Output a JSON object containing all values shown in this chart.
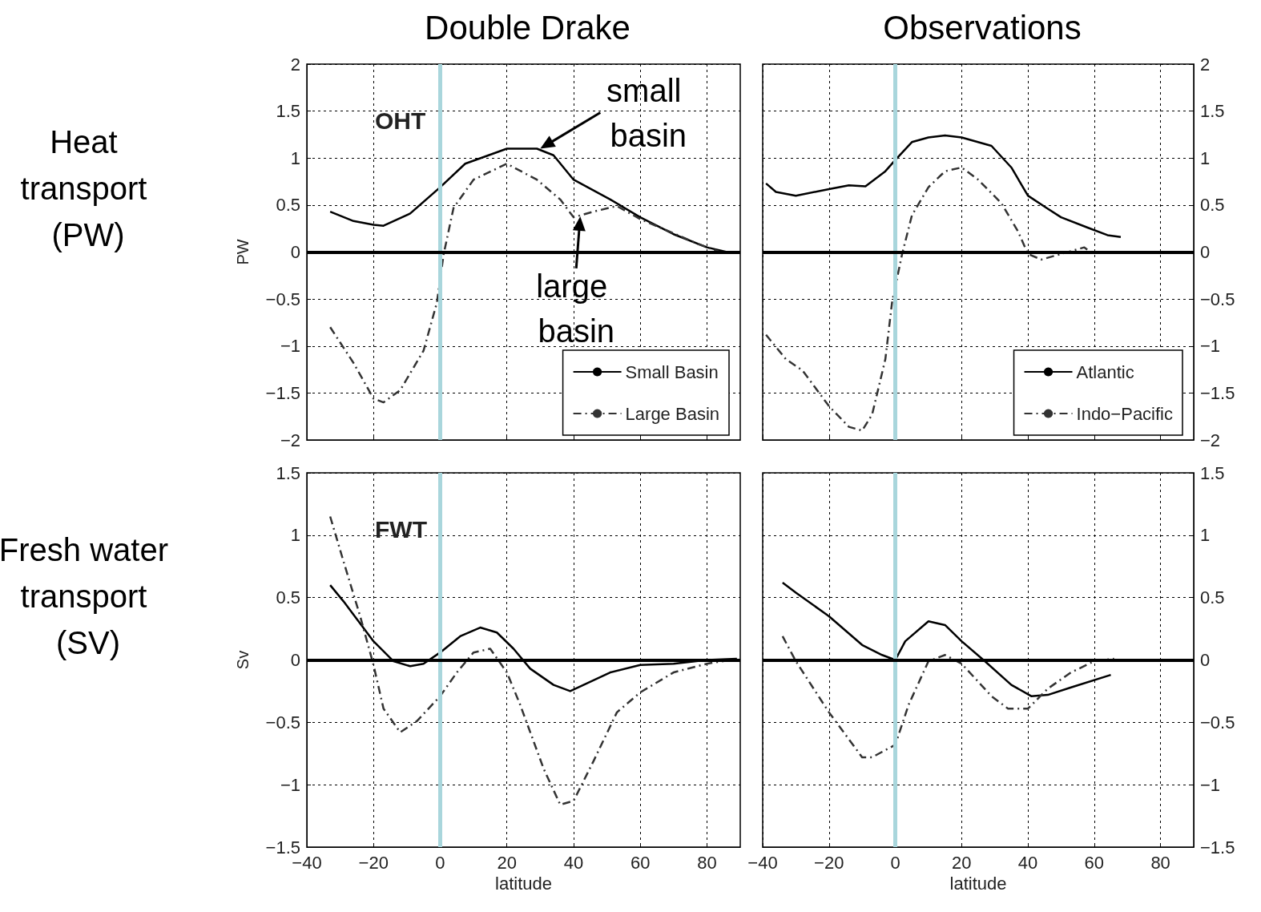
{
  "chart_data": [
    {
      "type": "line",
      "title": "Double Drake",
      "ylabel": "PW",
      "xlim": [
        -40,
        90
      ],
      "xticks": [
        {
          "value": -40,
          "label": null
        },
        {
          "value": -20,
          "label": null
        },
        {
          "value": 0,
          "label": null
        },
        {
          "value": 20,
          "label": null
        },
        {
          "value": 40,
          "label": null
        },
        {
          "value": 60,
          "label": null
        },
        {
          "value": 80,
          "label": null
        }
      ],
      "ylim": [
        -2,
        2
      ],
      "yticks": [
        {
          "value": -2,
          "label": "−2"
        },
        {
          "value": -1.5,
          "label": "−1.5"
        },
        {
          "value": -1,
          "label": "−1"
        },
        {
          "value": -0.5,
          "label": "−0.5"
        },
        0,
        0.5,
        1,
        1.5,
        2
      ],
      "tick_labels": "y",
      "grid": true,
      "legend": "bottom right",
      "marker": "none",
      "annotations": [
        "Heat transport (PW)",
        "OHT",
        {
          "text": "small basin",
          "x": 30,
          "y": 1.1
        },
        {
          "text": "large basin",
          "x": 42,
          "y": 0.38
        }
      ],
      "ref_lines": [
        {
          "axis": "x",
          "value": 0,
          "color": "#a9d6dc"
        },
        {
          "axis": "y",
          "value": 0,
          "color": "#000000"
        }
      ],
      "series": [
        {
          "name": "Small Basin",
          "color": "#000000",
          "line_style": "solid",
          "x": [
            -33,
            -26,
            -20,
            -17,
            -9,
            0,
            7.5,
            20,
            29,
            34,
            40,
            51,
            60,
            70,
            80,
            86,
            90
          ],
          "values": [
            0.43,
            0.33,
            0.29,
            0.28,
            0.41,
            0.69,
            0.94,
            1.1,
            1.1,
            1.03,
            0.77,
            0.56,
            0.37,
            0.19,
            0.05,
            0,
            0
          ]
        },
        {
          "name": "Large Basin",
          "color": "#333333",
          "line_style": "dashed",
          "x": [
            -33,
            -26,
            -20,
            -17,
            -12,
            -5,
            -1,
            1,
            4,
            10,
            20,
            29,
            36,
            40,
            46,
            53,
            60,
            70,
            77,
            84
          ],
          "values": [
            -0.8,
            -1.18,
            -1.56,
            -1.6,
            -1.47,
            -1.05,
            -0.54,
            -0.03,
            0.47,
            0.77,
            0.94,
            0.77,
            0.56,
            0.37,
            0.43,
            0.49,
            0.35,
            0.2,
            0.09,
            0
          ]
        }
      ]
    },
    {
      "type": "line",
      "title": "Observations",
      "xlim": [
        -40,
        90
      ],
      "xticks": [
        {
          "value": -40,
          "label": null
        },
        {
          "value": -20,
          "label": null
        },
        {
          "value": 0,
          "label": null
        },
        {
          "value": 20,
          "label": null
        },
        {
          "value": 40,
          "label": null
        },
        {
          "value": 60,
          "label": null
        },
        {
          "value": 80,
          "label": null
        }
      ],
      "ylim": [
        -2,
        2
      ],
      "yticks": [
        {
          "value": -2,
          "label": "−2"
        },
        {
          "value": -1.5,
          "label": "−1.5"
        },
        {
          "value": -1,
          "label": "−1"
        },
        {
          "value": -0.5,
          "label": "−0.5"
        },
        0,
        0.5,
        1,
        1.5,
        2
      ],
      "tick_labels": "y",
      "grid": true,
      "legend": "bottom right",
      "marker": "none",
      "ref_lines": [
        {
          "axis": "x",
          "value": 0,
          "color": "#a9d6dc"
        },
        {
          "axis": "y",
          "value": 0,
          "color": "#000000"
        }
      ],
      "series": [
        {
          "name": "Atlantic",
          "color": "#000000",
          "line_style": "solid",
          "x": [
            -39,
            -36,
            -30,
            -20,
            -14,
            -9,
            -3,
            0,
            5,
            10,
            15,
            20,
            29,
            35,
            40,
            46,
            50,
            58,
            64,
            68
          ],
          "values": [
            0.73,
            0.64,
            0.6,
            0.67,
            0.71,
            0.7,
            0.86,
            0.98,
            1.17,
            1.22,
            1.24,
            1.22,
            1.13,
            0.9,
            0.6,
            0.46,
            0.37,
            0.26,
            0.18,
            0.16
          ]
        },
        {
          "name": "Indo−Pacific",
          "color": "#333333",
          "line_style": "dashed",
          "x": [
            -39,
            -33,
            -28,
            -20,
            -14,
            -10,
            -7,
            -3,
            -1,
            2,
            5,
            10,
            15,
            20,
            25,
            32,
            37,
            40,
            44,
            49,
            55,
            57,
            60
          ],
          "values": [
            -0.88,
            -1.14,
            -1.26,
            -1.64,
            -1.86,
            -1.9,
            -1.73,
            -1.14,
            -0.54,
            -0.03,
            0.39,
            0.69,
            0.86,
            0.9,
            0.77,
            0.52,
            0.22,
            -0.02,
            -0.08,
            -0.03,
            0.03,
            0.05,
            -0.03
          ]
        }
      ]
    },
    {
      "type": "line",
      "xlabel": "latitude",
      "ylabel": "Sv",
      "xlim": [
        -40,
        90
      ],
      "xticks": [
        {
          "value": -40,
          "label": "−40"
        },
        {
          "value": -20,
          "label": "−20"
        },
        0,
        20,
        40,
        60,
        80
      ],
      "ylim": [
        -1.5,
        1.5
      ],
      "yticks": [
        {
          "value": -1.5,
          "label": "−1.5"
        },
        {
          "value": -1,
          "label": "−1"
        },
        {
          "value": -0.5,
          "label": "−0.5"
        },
        0,
        0.5,
        1,
        1.5
      ],
      "grid": true,
      "marker": "none",
      "annotations": [
        "Fresh water transport (SV)",
        "FWT"
      ],
      "ref_lines": [
        {
          "axis": "x",
          "value": 0,
          "color": "#a9d6dc"
        },
        {
          "axis": "y",
          "value": 0,
          "color": "#000000"
        }
      ],
      "series": [
        {
          "color": "#000000",
          "line_style": "solid",
          "x": [
            -33,
            -29,
            -20,
            -14,
            -9,
            -5,
            0,
            6,
            12,
            17,
            22,
            27,
            34,
            39,
            43,
            51,
            60,
            70,
            80,
            89
          ],
          "values": [
            0.6,
            0.47,
            0.15,
            -0.01,
            -0.05,
            -0.03,
            0.06,
            0.19,
            0.26,
            0.22,
            0.09,
            -0.07,
            -0.2,
            -0.25,
            -0.2,
            -0.1,
            -0.04,
            -0.03,
            0,
            0.01
          ]
        },
        {
          "color": "#333333",
          "line_style": "dashed",
          "x": [
            -33,
            -29,
            -24,
            -20,
            -17,
            -12,
            -7,
            0,
            5,
            10,
            15,
            20,
            24,
            31,
            36,
            40,
            46,
            53,
            60,
            70,
            80,
            87
          ],
          "values": [
            1.15,
            0.79,
            0.35,
            -0.04,
            -0.39,
            -0.58,
            -0.49,
            -0.29,
            -0.1,
            0.06,
            0.09,
            -0.1,
            -0.36,
            -0.87,
            -1.16,
            -1.13,
            -0.81,
            -0.42,
            -0.26,
            -0.1,
            -0.03,
            0
          ]
        }
      ]
    },
    {
      "type": "line",
      "xlabel": "latitude",
      "xlim": [
        -40,
        90
      ],
      "xticks": [
        {
          "value": -40,
          "label": "−40"
        },
        {
          "value": -20,
          "label": "−20"
        },
        0,
        20,
        40,
        60,
        80
      ],
      "ylim": [
        -1.5,
        1.5
      ],
      "yticks": [
        {
          "value": -1.5,
          "label": "−1.5"
        },
        {
          "value": -1,
          "label": "−1"
        },
        {
          "value": -0.5,
          "label": "−0.5"
        },
        0,
        0.5,
        1,
        1.5
      ],
      "grid": true,
      "marker": "none",
      "ref_lines": [
        {
          "axis": "x",
          "value": 0,
          "color": "#a9d6dc"
        },
        {
          "axis": "y",
          "value": 0,
          "color": "#000000"
        }
      ],
      "series": [
        {
          "color": "#000000",
          "line_style": "solid",
          "x": [
            -34,
            -30,
            -20,
            -10,
            -4,
            0,
            3,
            10,
            15,
            20,
            27,
            35,
            41,
            46,
            53,
            65
          ],
          "values": [
            0.62,
            0.54,
            0.35,
            0.12,
            0.04,
            0,
            0.15,
            0.31,
            0.28,
            0.15,
            -0.01,
            -0.2,
            -0.29,
            -0.28,
            -0.22,
            -0.12
          ]
        },
        {
          "color": "#333333",
          "line_style": "dashed",
          "x": [
            -34,
            -30,
            -20,
            -10,
            -7,
            0,
            4,
            10,
            15,
            20,
            29,
            34,
            40,
            46,
            53,
            60,
            66
          ],
          "values": [
            0.19,
            -0.01,
            -0.42,
            -0.78,
            -0.78,
            -0.68,
            -0.36,
            -0.01,
            0.04,
            -0.03,
            -0.29,
            -0.39,
            -0.39,
            -0.23,
            -0.1,
            -0.01,
            0.01
          ]
        }
      ]
    }
  ]
}
